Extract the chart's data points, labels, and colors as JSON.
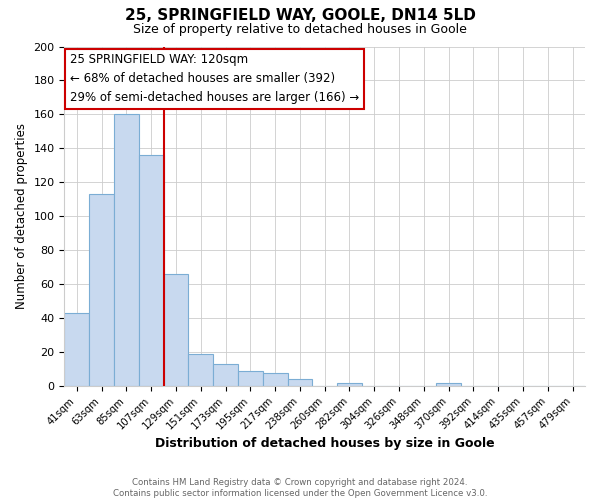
{
  "title": "25, SPRINGFIELD WAY, GOOLE, DN14 5LD",
  "subtitle": "Size of property relative to detached houses in Goole",
  "xlabel": "Distribution of detached houses by size in Goole",
  "ylabel": "Number of detached properties",
  "footer_line1": "Contains HM Land Registry data © Crown copyright and database right 2024.",
  "footer_line2": "Contains public sector information licensed under the Open Government Licence v3.0.",
  "categories": [
    "41sqm",
    "63sqm",
    "85sqm",
    "107sqm",
    "129sqm",
    "151sqm",
    "173sqm",
    "195sqm",
    "217sqm",
    "238sqm",
    "260sqm",
    "282sqm",
    "304sqm",
    "326sqm",
    "348sqm",
    "370sqm",
    "392sqm",
    "414sqm",
    "435sqm",
    "457sqm",
    "479sqm"
  ],
  "values": [
    43,
    113,
    160,
    136,
    66,
    19,
    13,
    9,
    8,
    4,
    0,
    2,
    0,
    0,
    0,
    2,
    0,
    0,
    0,
    0,
    0
  ],
  "bar_color": "#c8d9ef",
  "bar_edge_color": "#7badd4",
  "ylim": [
    0,
    200
  ],
  "yticks": [
    0,
    20,
    40,
    60,
    80,
    100,
    120,
    140,
    160,
    180,
    200
  ],
  "annotation_title": "25 SPRINGFIELD WAY: 120sqm",
  "annotation_line2": "← 68% of detached houses are smaller (392)",
  "annotation_line3": "29% of semi-detached houses are larger (166) →",
  "annotation_box_color": "#ffffff",
  "annotation_box_edge": "#cc0000",
  "background_color": "#ffffff",
  "grid_color": "#cccccc",
  "property_line_x": 3.5,
  "property_line_color": "#cc0000",
  "title_fontsize": 11,
  "subtitle_fontsize": 9,
  "annotation_fontsize": 8.5
}
